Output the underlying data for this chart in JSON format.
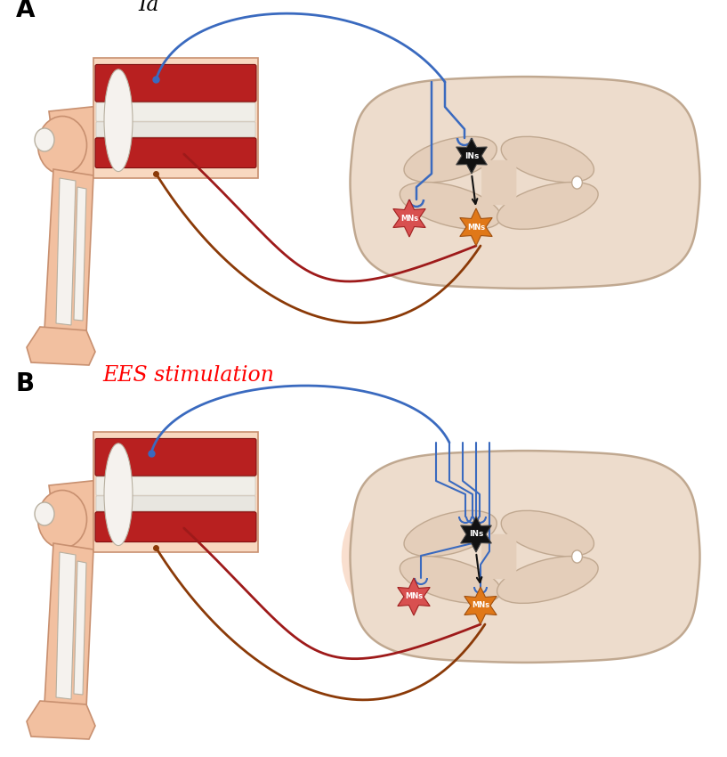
{
  "bg_color": "#ffffff",
  "skin_color": "#f2c0a0",
  "skin_outline": "#c89070",
  "skin_light": "#f8d8c0",
  "muscle_red": "#b82020",
  "muscle_outline": "#801010",
  "bone_white": "#f5f2ee",
  "bone_outline": "#b8b0a0",
  "sc_fill": "#eddccc",
  "sc_outline": "#c0a890",
  "sc_inner": "#e4ceba",
  "blue_nerve": "#3a6abf",
  "red_nerve": "#9e1a1a",
  "brown_nerve": "#8b3a08",
  "black_neuron": "#111111",
  "orange_MNs_color": "#e07818",
  "pink_MNs_color": "#d85050",
  "ees_highlight": "#f5c0a0",
  "label_A": "A",
  "label_B": "B",
  "label_Ia": "Ia",
  "label_EES": "EES stimulation",
  "label_INs": "INs",
  "label_MNs": "MNs"
}
